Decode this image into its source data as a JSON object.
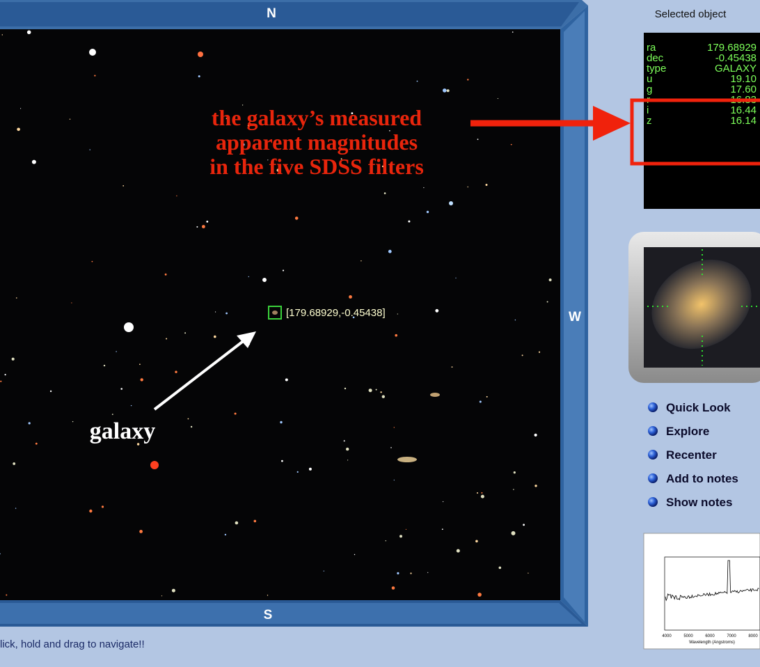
{
  "viewer": {
    "compass": {
      "north": "N",
      "south": "S",
      "west": "W"
    },
    "marker_label": "[179.68929,-0.45438]",
    "annotation_magnitudes": [
      "the galaxy’s measured",
      "apparent magnitudes",
      "in the five SDSS filters"
    ],
    "annotation_galaxy": "galaxy",
    "footer": "lick, hold and drag to navigate!!"
  },
  "selected_object": {
    "title": "Selected object",
    "rows": [
      [
        "ra",
        "179.68929"
      ],
      [
        "dec",
        "-0.45438"
      ],
      [
        "type",
        "GALAXY"
      ],
      [
        "u",
        "19.10"
      ],
      [
        "g",
        "17.60"
      ],
      [
        "r",
        "16.83"
      ],
      [
        "i",
        "16.44"
      ],
      [
        "z",
        "16.14"
      ]
    ]
  },
  "actions": [
    "Quick Look",
    "Explore",
    "Recenter",
    "Add to notes",
    "Show notes"
  ],
  "spectrum": {
    "xticks": [
      "4000",
      "5000",
      "6000",
      "7000",
      "8000"
    ],
    "xlabel": "Wavelength (Angstroms)"
  }
}
